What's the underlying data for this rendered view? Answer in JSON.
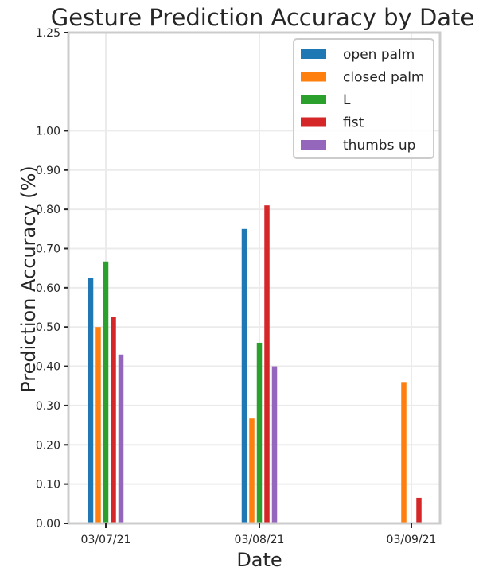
{
  "chart_data": {
    "type": "bar",
    "title": "Gesture Prediction Accuracy by Date",
    "xlabel": "Date",
    "ylabel": "Prediction Accuracy (%)",
    "ylim": [
      0,
      1.25
    ],
    "yticks": [
      0.0,
      0.1,
      0.2,
      0.3,
      0.4,
      0.5,
      0.6,
      0.7,
      0.8,
      0.9,
      1.0,
      1.25
    ],
    "ytick_labels": [
      "0.00",
      "0.10",
      "0.20",
      "0.30",
      "0.40",
      "0.50",
      "0.60",
      "0.70",
      "0.80",
      "0.90",
      "1.00",
      "1.25"
    ],
    "categories": [
      "03/07/21",
      "03/08/21",
      "03/09/21"
    ],
    "series": [
      {
        "name": "open palm",
        "color": "#1f77b4",
        "values": [
          0.625,
          0.75,
          0
        ]
      },
      {
        "name": "closed palm",
        "color": "#ff7f0e",
        "values": [
          0.5,
          0.267,
          0.36
        ]
      },
      {
        "name": "L",
        "color": "#2ca02c",
        "values": [
          0.667,
          0.46,
          0
        ]
      },
      {
        "name": "fist",
        "color": "#d62728",
        "values": [
          0.525,
          0.81,
          0.065
        ]
      },
      {
        "name": "thumbs up",
        "color": "#9467bd",
        "values": [
          0.43,
          0.4,
          0
        ]
      }
    ],
    "grid": true,
    "legend_position": "top-right"
  }
}
